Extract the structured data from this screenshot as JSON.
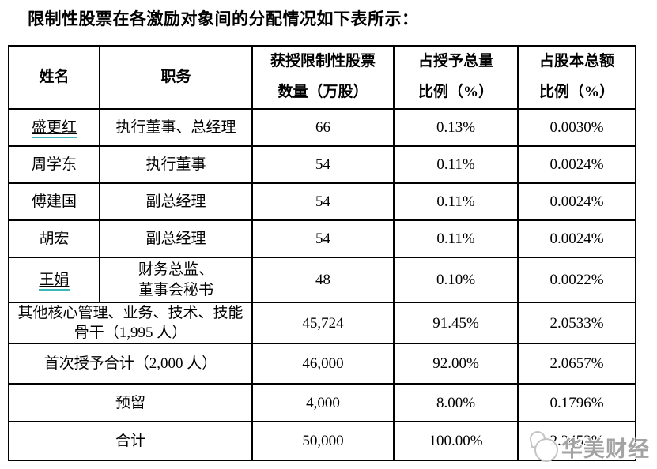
{
  "title": "限制性股票在各激励对象间的分配情况如下表所示：",
  "table": {
    "headers": {
      "name": "姓名",
      "position": "职务",
      "quantity": "获授限制性股票\n数量（万股）",
      "grant_ratio": "占授予总量\n比例（%）",
      "capital_ratio": "占股本总额\n比例（%）"
    },
    "rows": [
      {
        "name": "盛更红",
        "linked": true,
        "position": "执行董事、总经理",
        "quantity": "66",
        "grant_ratio": "0.13%",
        "capital_ratio": "0.0030%"
      },
      {
        "name": "周学东",
        "linked": false,
        "position": "执行董事",
        "quantity": "54",
        "grant_ratio": "0.11%",
        "capital_ratio": "0.0024%"
      },
      {
        "name": "傅建国",
        "linked": false,
        "position": "副总经理",
        "quantity": "54",
        "grant_ratio": "0.11%",
        "capital_ratio": "0.0024%"
      },
      {
        "name": "胡宏",
        "linked": false,
        "position": "副总经理",
        "quantity": "54",
        "grant_ratio": "0.11%",
        "capital_ratio": "0.0024%"
      },
      {
        "name": "王娟",
        "linked": true,
        "position": "财务总监、\n董事会秘书",
        "quantity": "48",
        "grant_ratio": "0.10%",
        "capital_ratio": "0.0022%"
      },
      {
        "label": "其他核心管理、业务、技术、技能\n骨干（1,995 人）",
        "quantity": "45,724",
        "grant_ratio": "91.45%",
        "capital_ratio": "2.0533%"
      },
      {
        "label": "首次授予合计（2,000 人）",
        "quantity": "46,000",
        "grant_ratio": "92.00%",
        "capital_ratio": "2.0657%"
      },
      {
        "label": "预留",
        "quantity": "4,000",
        "grant_ratio": "8.00%",
        "capital_ratio": "0.1796%"
      },
      {
        "label": "合计",
        "quantity": "50,000",
        "grant_ratio": "100.00%",
        "capital_ratio": "2.2453%"
      }
    ]
  },
  "watermark": {
    "text": "华美财经",
    "logo": "mascot-logo",
    "text_color": "#a3a3a3"
  },
  "colors": {
    "link_underline": "#3cb8b8",
    "border": "#000000",
    "background": "#ffffff"
  }
}
